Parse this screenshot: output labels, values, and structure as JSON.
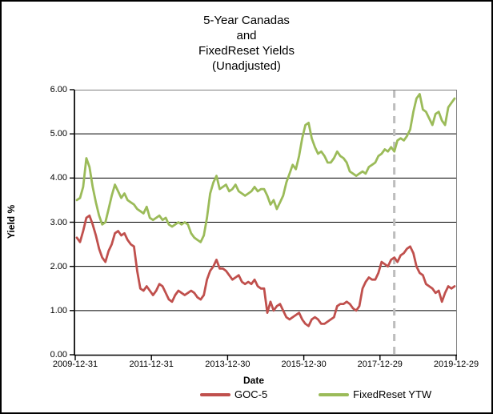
{
  "chart_data": {
    "type": "line",
    "title_lines": [
      "5-Year Canadas",
      "and",
      "FixedReset Yields",
      "(Unadjusted)"
    ],
    "ylabel": "Yield %",
    "xlabel": "Date",
    "ylim": [
      0.0,
      6.0
    ],
    "y_ticks": [
      6.0,
      5.0,
      4.0,
      3.0,
      2.0,
      1.0,
      0.0
    ],
    "y_tick_format": "2dp",
    "x_tick_labels": [
      "2009-12-31",
      "2011-12-31",
      "2013-12-30",
      "2015-12-30",
      "2017-12-29",
      "2019-12-29"
    ],
    "grid": true,
    "legend_position": "bottom",
    "x_monthly": {
      "start": "2010-01",
      "end": "2019-12"
    },
    "series": [
      {
        "name": "GOC-5",
        "color": "#c0504d",
        "values": [
          2.65,
          2.55,
          2.8,
          3.1,
          3.15,
          2.95,
          2.7,
          2.4,
          2.2,
          2.1,
          2.35,
          2.5,
          2.75,
          2.8,
          2.7,
          2.75,
          2.6,
          2.5,
          2.45,
          1.9,
          1.5,
          1.45,
          1.55,
          1.45,
          1.35,
          1.45,
          1.6,
          1.55,
          1.4,
          1.25,
          1.2,
          1.35,
          1.45,
          1.4,
          1.35,
          1.4,
          1.45,
          1.4,
          1.3,
          1.25,
          1.35,
          1.7,
          1.9,
          2.0,
          2.15,
          1.95,
          1.95,
          1.9,
          1.8,
          1.7,
          1.75,
          1.8,
          1.65,
          1.6,
          1.65,
          1.6,
          1.7,
          1.55,
          1.5,
          1.5,
          0.95,
          1.2,
          1.0,
          1.1,
          1.15,
          1.0,
          0.85,
          0.8,
          0.85,
          0.9,
          0.95,
          0.8,
          0.7,
          0.65,
          0.8,
          0.85,
          0.8,
          0.7,
          0.7,
          0.75,
          0.8,
          0.85,
          1.1,
          1.15,
          1.15,
          1.2,
          1.15,
          1.05,
          1.0,
          1.1,
          1.5,
          1.65,
          1.75,
          1.7,
          1.7,
          1.85,
          2.1,
          2.05,
          2.0,
          2.15,
          2.2,
          2.1,
          2.25,
          2.3,
          2.4,
          2.45,
          2.3,
          2.0,
          1.85,
          1.8,
          1.6,
          1.55,
          1.5,
          1.4,
          1.45,
          1.2,
          1.4,
          1.55,
          1.5,
          1.55
        ]
      },
      {
        "name": "FixedReset YTW",
        "color": "#9bbb59",
        "values": [
          3.5,
          3.55,
          3.8,
          4.45,
          4.25,
          3.8,
          3.45,
          3.15,
          2.95,
          3.0,
          3.3,
          3.6,
          3.85,
          3.7,
          3.55,
          3.65,
          3.5,
          3.45,
          3.4,
          3.3,
          3.25,
          3.2,
          3.35,
          3.1,
          3.05,
          3.1,
          3.15,
          3.05,
          3.1,
          2.95,
          2.9,
          2.95,
          3.0,
          2.95,
          3.0,
          2.95,
          2.75,
          2.65,
          2.6,
          2.55,
          2.7,
          3.1,
          3.65,
          3.9,
          4.05,
          3.75,
          3.8,
          3.85,
          3.7,
          3.75,
          3.85,
          3.7,
          3.65,
          3.6,
          3.65,
          3.7,
          3.8,
          3.7,
          3.75,
          3.75,
          3.6,
          3.4,
          3.5,
          3.3,
          3.45,
          3.6,
          3.9,
          4.1,
          4.3,
          4.2,
          4.5,
          4.9,
          5.2,
          5.25,
          4.9,
          4.7,
          4.55,
          4.6,
          4.5,
          4.35,
          4.35,
          4.45,
          4.6,
          4.5,
          4.45,
          4.35,
          4.15,
          4.1,
          4.05,
          4.1,
          4.15,
          4.1,
          4.25,
          4.3,
          4.35,
          4.5,
          4.55,
          4.65,
          4.6,
          4.7,
          4.6,
          4.85,
          4.9,
          4.85,
          4.95,
          5.1,
          5.5,
          5.8,
          5.9,
          5.55,
          5.5,
          5.35,
          5.2,
          5.45,
          5.5,
          5.3,
          5.2,
          5.6,
          5.7,
          5.8
        ]
      }
    ],
    "vline": {
      "position": "2018-05",
      "color": "#bdbdbd",
      "style": "dashed"
    },
    "colors": {
      "plot_frame": "#808080",
      "axis": "#000000",
      "gridline": "#000000",
      "background": "#ffffff"
    }
  }
}
